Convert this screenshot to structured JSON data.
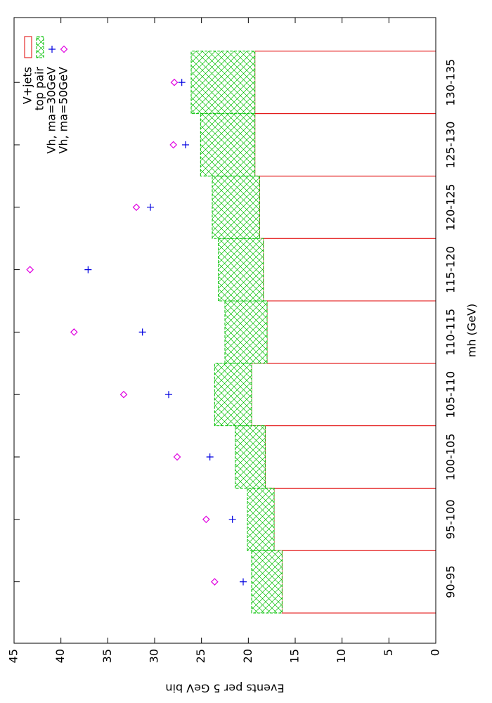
{
  "chart_data": {
    "type": "bar",
    "stacked": true,
    "x_label": "mh (GeV)",
    "y_label": "Events per 5 GeV bin",
    "categories": [
      "90-95",
      "95-100",
      "100-105",
      "105-110",
      "110-115",
      "115-120",
      "120-125",
      "125-130",
      "130-135"
    ],
    "series": [
      {
        "name": "V+jets",
        "type": "bar",
        "color": "#e00000",
        "values": [
          16.4,
          17.25,
          18.2,
          19.65,
          18.0,
          18.4,
          18.8,
          19.3,
          19.3
        ]
      },
      {
        "name": "top pair",
        "type": "bar",
        "color": "#00c000",
        "hatch": true,
        "values": [
          3.25,
          2.85,
          3.2,
          3.95,
          4.5,
          4.8,
          5.05,
          5.8,
          6.8
        ]
      },
      {
        "name": "Vh, ma=30GeV",
        "type": "scatter",
        "marker": "plus",
        "color": "#0000e0",
        "values": [
          20.55,
          21.7,
          24.1,
          28.5,
          31.3,
          37.1,
          30.45,
          26.7,
          27.1
        ]
      },
      {
        "name": "Vh, ma=50GeV",
        "type": "scatter",
        "marker": "diamond",
        "color": "#e000e0",
        "values": [
          23.6,
          24.5,
          27.6,
          33.3,
          38.6,
          43.3,
          31.95,
          28.0,
          27.9
        ]
      }
    ],
    "ylim": [
      0,
      45
    ],
    "yticks": [
      0,
      5,
      10,
      15,
      20,
      25,
      30,
      35,
      40,
      45
    ],
    "legend": "top-right"
  }
}
